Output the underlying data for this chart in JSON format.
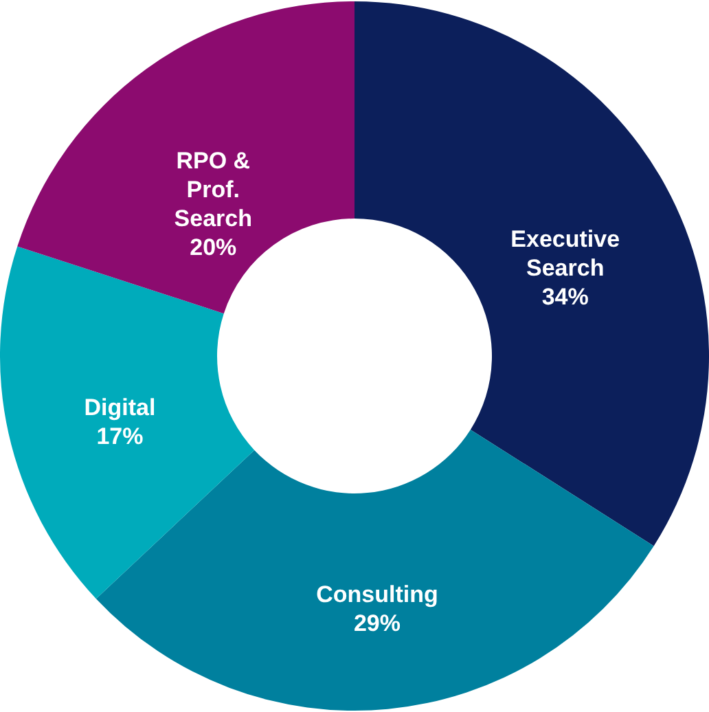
{
  "chart_data": {
    "type": "donut",
    "categories": [
      "Executive Search",
      "Consulting",
      "Digital",
      "RPO & Prof. Search"
    ],
    "values": [
      34,
      29,
      17,
      20
    ],
    "colors": [
      "#0c1f5b",
      "#00809e",
      "#00abbb",
      "#8c0b6f"
    ],
    "value_labels": [
      "34%",
      "29%",
      "17%",
      "20%"
    ]
  }
}
